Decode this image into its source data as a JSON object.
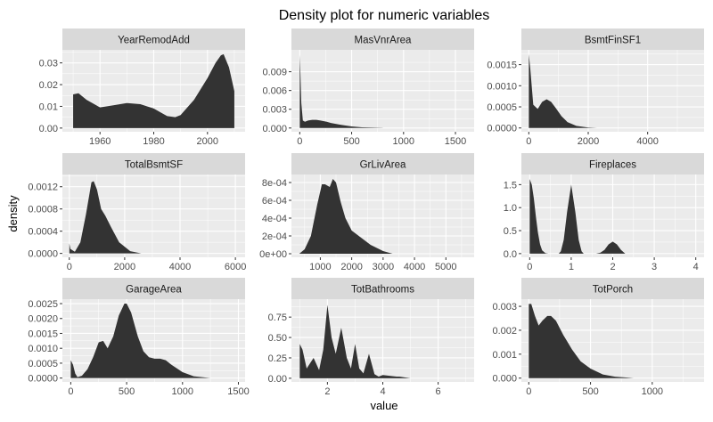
{
  "chart_data": {
    "type": "area",
    "title": "Density plot for numeric variables",
    "xlabel": "value",
    "ylabel": "density",
    "fill_color": "#333333",
    "panel_background": "#ebebeb",
    "strip_background": "#d9d9d9",
    "grid": true,
    "facets": [
      {
        "name": "YearRemodAdd",
        "xlim": [
          1946,
          2014
        ],
        "ylim": [
          -0.0017,
          0.036
        ],
        "xticks": [
          1960,
          1980,
          2000
        ],
        "xtick_labels": [
          "1960",
          "1980",
          "2000"
        ],
        "yticks": [
          0,
          0.01,
          0.02,
          0.03
        ],
        "ytick_labels": [
          "0.00",
          "0.01",
          "0.02",
          "0.03"
        ],
        "x": [
          1950,
          1952,
          1955,
          1960,
          1965,
          1970,
          1975,
          1980,
          1985,
          1988,
          1990,
          1995,
          2000,
          2003,
          2005,
          2006,
          2008,
          2010
        ],
        "y": [
          0.0155,
          0.016,
          0.013,
          0.0095,
          0.0105,
          0.0115,
          0.011,
          0.009,
          0.0055,
          0.005,
          0.006,
          0.013,
          0.023,
          0.03,
          0.0335,
          0.034,
          0.028,
          0.017
        ]
      },
      {
        "name": "MasVnrArea",
        "xlim": [
          -80,
          1680
        ],
        "ylim": [
          -0.0006,
          0.0125
        ],
        "xticks": [
          0,
          500,
          1000,
          1500
        ],
        "xtick_labels": [
          "0",
          "500",
          "1000",
          "1500"
        ],
        "yticks": [
          0,
          0.003,
          0.006,
          0.009
        ],
        "ytick_labels": [
          "0.000",
          "0.003",
          "0.006",
          "0.009"
        ],
        "x": [
          0,
          5,
          15,
          30,
          50,
          80,
          120,
          160,
          200,
          260,
          300,
          400,
          500,
          600,
          800
        ],
        "y": [
          0.0117,
          0.0095,
          0.004,
          0.0012,
          0.001,
          0.0012,
          0.0013,
          0.0013,
          0.0012,
          0.001,
          0.0008,
          0.0005,
          0.00025,
          0.00012,
          2e-05
        ]
      },
      {
        "name": "BsmtFinSF1",
        "xlim": [
          -250,
          5900
        ],
        "ylim": [
          -9e-05,
          0.00185
        ],
        "xticks": [
          0,
          2000,
          4000
        ],
        "xtick_labels": [
          "0",
          "2000",
          "4000"
        ],
        "yticks": [
          0,
          0.0005,
          0.001,
          0.0015
        ],
        "ytick_labels": [
          "0.0000",
          "0.0005",
          "0.0010",
          "0.0015"
        ],
        "x": [
          0,
          50,
          150,
          300,
          450,
          600,
          750,
          900,
          1100,
          1300,
          1600,
          2000,
          2300
        ],
        "y": [
          0.00175,
          0.0014,
          0.00055,
          0.00045,
          0.00062,
          0.00068,
          0.00062,
          0.00048,
          0.00028,
          0.00014,
          5e-05,
          1e-05,
          0
        ]
      },
      {
        "name": "TotalBsmtSF",
        "xlim": [
          -250,
          6350
        ],
        "ylim": [
          -7e-05,
          0.00142
        ],
        "xticks": [
          0,
          2000,
          4000,
          6000
        ],
        "xtick_labels": [
          "0",
          "2000",
          "4000",
          "6000"
        ],
        "yticks": [
          0,
          0.0004,
          0.0008,
          0.0012
        ],
        "ytick_labels": [
          "0.0000",
          "0.0004",
          "0.0008",
          "0.0012"
        ],
        "x": [
          0,
          40,
          200,
          400,
          600,
          800,
          880,
          1000,
          1150,
          1300,
          1500,
          1800,
          2200,
          2600
        ],
        "y": [
          0.00018,
          8e-05,
          3e-05,
          0.0002,
          0.0007,
          0.00128,
          0.0013,
          0.00115,
          0.0008,
          0.00068,
          0.00048,
          0.0002,
          4e-05,
          0
        ]
      },
      {
        "name": "GrLivArea",
        "xlim": [
          80,
          5900
        ],
        "ylim": [
          -4e-05,
          0.00089
        ],
        "xticks": [
          1000,
          2000,
          3000,
          4000,
          5000
        ],
        "xtick_labels": [
          "1000",
          "2000",
          "3000",
          "4000",
          "5000"
        ],
        "yticks": [
          0,
          0.0002,
          0.0004,
          0.0006,
          0.0008
        ],
        "ytick_labels": [
          "0e+00",
          "2e-04",
          "4e-04",
          "6e-04",
          "8e-04"
        ],
        "x": [
          330,
          500,
          700,
          900,
          1050,
          1150,
          1300,
          1400,
          1500,
          1650,
          1800,
          2000,
          2300,
          2600,
          3000,
          3300
        ],
        "y": [
          0,
          5e-05,
          0.0002,
          0.00055,
          0.00078,
          0.00078,
          0.00075,
          0.00084,
          0.0008,
          0.00058,
          0.0004,
          0.00026,
          0.00018,
          0.0001,
          3e-05,
          0
        ]
      },
      {
        "name": "Fireplaces",
        "xlim": [
          -0.2,
          4.2
        ],
        "ylim": [
          -0.08,
          1.72
        ],
        "xticks": [
          0,
          1,
          2,
          3,
          4
        ],
        "xtick_labels": [
          "0",
          "1",
          "2",
          "3",
          "4"
        ],
        "yticks": [
          0,
          0.5,
          1.0,
          1.5
        ],
        "ytick_labels": [
          "0.0",
          "0.5",
          "1.0",
          "1.5"
        ],
        "x": [
          0,
          0.05,
          0.1,
          0.15,
          0.2,
          0.25,
          0.3,
          0.38,
          0.45,
          0.7,
          0.75,
          0.82,
          0.9,
          1.0,
          1.1,
          1.18,
          1.25,
          1.3,
          1.6,
          1.7,
          1.8,
          1.9,
          2.0,
          2.1,
          2.2,
          2.3
        ],
        "y": [
          1.62,
          1.5,
          1.2,
          0.8,
          0.45,
          0.2,
          0.07,
          0.01,
          0,
          0,
          0.05,
          0.3,
          0.9,
          1.5,
          0.9,
          0.3,
          0.05,
          0,
          0,
          0.02,
          0.08,
          0.2,
          0.26,
          0.2,
          0.08,
          0
        ]
      },
      {
        "name": "GarageArea",
        "xlim": [
          -75,
          1560
        ],
        "ylim": [
          -0.00013,
          0.00265
        ],
        "xticks": [
          0,
          500,
          1000,
          1500
        ],
        "xtick_labels": [
          "0",
          "500",
          "1000",
          "1500"
        ],
        "yticks": [
          0,
          0.0005,
          0.001,
          0.0015,
          0.002,
          0.0025
        ],
        "ytick_labels": [
          "0.0000",
          "0.0005",
          "0.0010",
          "0.0015",
          "0.0020",
          "0.0025"
        ],
        "x": [
          0,
          20,
          40,
          60,
          100,
          150,
          200,
          250,
          290,
          330,
          380,
          430,
          480,
          500,
          540,
          600,
          650,
          700,
          750,
          800,
          850,
          900,
          1000,
          1100,
          1250
        ],
        "y": [
          0.0006,
          0.00045,
          0.00015,
          3e-05,
          8e-05,
          0.0003,
          0.0007,
          0.0012,
          0.00125,
          0.001,
          0.0014,
          0.0021,
          0.0025,
          0.0025,
          0.0022,
          0.0014,
          0.0009,
          0.0007,
          0.00065,
          0.00065,
          0.0006,
          0.00045,
          0.0002,
          6e-05,
          0
        ]
      },
      {
        "name": "TotBathrooms",
        "xlim": [
          0.7,
          7.3
        ],
        "ylim": [
          -0.045,
          0.97
        ],
        "xticks": [
          2,
          4,
          6
        ],
        "xtick_labels": [
          "2",
          "4",
          "6"
        ],
        "yticks": [
          0,
          0.25,
          0.5,
          0.75
        ],
        "ytick_labels": [
          "0.00",
          "0.25",
          "0.50",
          "0.75"
        ],
        "x": [
          1.0,
          1.1,
          1.25,
          1.5,
          1.7,
          1.85,
          2.0,
          2.15,
          2.3,
          2.5,
          2.7,
          2.85,
          3.0,
          3.15,
          3.3,
          3.5,
          3.7,
          3.85,
          4.0,
          4.5,
          4.6,
          5.0
        ],
        "y": [
          0.42,
          0.35,
          0.12,
          0.25,
          0.1,
          0.35,
          0.9,
          0.5,
          0.3,
          0.62,
          0.25,
          0.12,
          0.42,
          0.12,
          0.06,
          0.3,
          0.05,
          0.02,
          0.04,
          0.02,
          0.02,
          0
        ]
      },
      {
        "name": "TotPorch",
        "xlim": [
          -60,
          1420
        ],
        "ylim": [
          -0.00016,
          0.0033
        ],
        "xticks": [
          0,
          500,
          1000
        ],
        "xtick_labels": [
          "0",
          "500",
          "1000"
        ],
        "yticks": [
          0,
          0.001,
          0.002,
          0.003
        ],
        "ytick_labels": [
          "0.000",
          "0.001",
          "0.002",
          "0.003"
        ],
        "x": [
          0,
          20,
          50,
          80,
          110,
          150,
          180,
          220,
          280,
          350,
          420,
          500,
          600,
          700,
          800,
          850
        ],
        "y": [
          0.0031,
          0.0031,
          0.0026,
          0.0022,
          0.0024,
          0.0026,
          0.0026,
          0.0024,
          0.0018,
          0.0012,
          0.0007,
          0.0004,
          0.00015,
          6e-05,
          2e-05,
          0
        ]
      }
    ]
  }
}
